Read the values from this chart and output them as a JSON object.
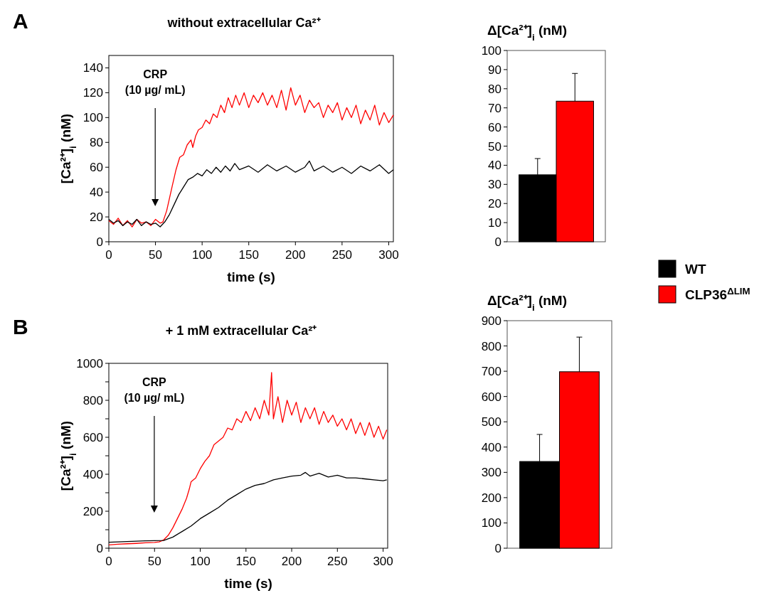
{
  "chart_data": [
    {
      "type": "line",
      "title": "without extracellular Ca²⁺",
      "xlabel": "time (s)",
      "ylabel": "[Ca²⁺]$_{i}$ (nM)",
      "xlim": [
        0,
        305
      ],
      "xticks": [
        0,
        50,
        100,
        150,
        200,
        250,
        300
      ],
      "ylim": [
        0,
        150
      ],
      "yticks": [
        0,
        20,
        40,
        60,
        80,
        100,
        120,
        140
      ],
      "annotations": [
        "A",
        "CRP\n(10 µg/ mL)"
      ],
      "series": [
        {
          "color": "#ff0000",
          "x": [
            0,
            5,
            10,
            15,
            20,
            25,
            30,
            35,
            40,
            45,
            50,
            55,
            58,
            62,
            65,
            68,
            72,
            76,
            80,
            84,
            88,
            90,
            93,
            96,
            100,
            104,
            108,
            112,
            116,
            120,
            124,
            128,
            132,
            136,
            140,
            145,
            150,
            155,
            160,
            165,
            170,
            175,
            180,
            185,
            190,
            195,
            200,
            205,
            210,
            215,
            220,
            225,
            230,
            235,
            240,
            245,
            250,
            255,
            260,
            265,
            270,
            275,
            280,
            285,
            290,
            295,
            300,
            305
          ],
          "values": [
            17,
            14,
            19,
            13,
            17,
            12,
            18,
            15,
            16,
            13,
            18,
            15,
            16,
            25,
            35,
            45,
            58,
            68,
            70,
            78,
            82,
            76,
            85,
            90,
            92,
            98,
            95,
            103,
            100,
            110,
            104,
            116,
            108,
            118,
            110,
            120,
            108,
            118,
            112,
            120,
            110,
            118,
            108,
            122,
            106,
            124,
            110,
            118,
            104,
            114,
            108,
            112,
            100,
            110,
            104,
            112,
            98,
            108,
            100,
            110,
            95,
            106,
            98,
            110,
            94,
            104,
            96,
            102
          ]
        },
        {
          "color": "#000000",
          "x": [
            0,
            5,
            10,
            15,
            20,
            25,
            30,
            35,
            40,
            45,
            50,
            55,
            60,
            65,
            70,
            75,
            80,
            85,
            90,
            95,
            100,
            105,
            110,
            115,
            120,
            125,
            130,
            135,
            140,
            150,
            160,
            170,
            180,
            190,
            200,
            210,
            215,
            220,
            230,
            240,
            250,
            260,
            270,
            280,
            290,
            300,
            305
          ],
          "values": [
            18,
            15,
            17,
            13,
            16,
            14,
            18,
            13,
            16,
            14,
            15,
            12,
            16,
            22,
            30,
            38,
            44,
            50,
            52,
            55,
            53,
            58,
            55,
            60,
            56,
            61,
            57,
            63,
            58,
            61,
            56,
            62,
            57,
            61,
            56,
            60,
            65,
            57,
            61,
            56,
            60,
            55,
            61,
            57,
            62,
            55,
            58
          ]
        }
      ]
    },
    {
      "type": "bar",
      "title": "Δ[Ca²⁺]$_{i}$ (nM)",
      "categories": [
        null
      ],
      "ylim": [
        0,
        100
      ],
      "yticks": [
        0,
        10,
        20,
        30,
        40,
        50,
        60,
        70,
        80,
        90,
        100
      ],
      "legend": "right",
      "series": [
        {
          "name": "WT",
          "color": "#000000",
          "values": [
            35
          ],
          "errors": [
            [
              35,
              43.5
            ]
          ]
        },
        {
          "name": "CLP36$^{ΔLIM}$",
          "color": "#ff0000",
          "values": [
            73.5
          ],
          "errors": [
            [
              73.5,
              88
            ]
          ]
        }
      ]
    },
    {
      "type": "line",
      "title": "+ 1 mM extracellular Ca²⁺",
      "xlabel": "time (s)",
      "ylabel": "[Ca²⁺]$_{i}$ (nM)",
      "xlim": [
        0,
        305
      ],
      "xticks": [
        0,
        50,
        100,
        150,
        200,
        250,
        300
      ],
      "ylim": [
        0,
        1000
      ],
      "yticks": [
        0,
        {
          "value": 100,
          "label": null
        },
        200,
        {
          "value": 300,
          "label": null
        },
        400,
        {
          "value": 500,
          "label": null
        },
        600,
        {
          "value": 700,
          "label": null
        },
        800,
        {
          "value": 900,
          "label": null
        },
        1000
      ],
      "annotations": [
        "B",
        "CRP\n(10 µg/ mL)"
      ],
      "series": [
        {
          "color": "#ff0000",
          "x": [
            0,
            10,
            20,
            30,
            40,
            50,
            55,
            60,
            65,
            70,
            75,
            80,
            85,
            88,
            90,
            95,
            100,
            105,
            110,
            115,
            120,
            125,
            130,
            135,
            140,
            145,
            150,
            155,
            160,
            165,
            170,
            175,
            178,
            180,
            185,
            190,
            195,
            200,
            205,
            210,
            215,
            220,
            225,
            230,
            235,
            240,
            245,
            250,
            255,
            260,
            265,
            270,
            275,
            280,
            285,
            290,
            295,
            300,
            304
          ],
          "values": [
            18,
            22,
            24,
            26,
            29,
            31,
            34,
            45,
            70,
            110,
            160,
            210,
            270,
            320,
            360,
            380,
            430,
            470,
            500,
            560,
            580,
            600,
            650,
            640,
            700,
            680,
            740,
            690,
            760,
            700,
            800,
            720,
            950,
            700,
            820,
            680,
            800,
            720,
            790,
            680,
            760,
            700,
            760,
            670,
            740,
            680,
            720,
            660,
            700,
            640,
            700,
            620,
            680,
            610,
            680,
            600,
            660,
            590,
            640
          ]
        },
        {
          "color": "#000000",
          "x": [
            0,
            10,
            20,
            30,
            40,
            50,
            60,
            70,
            80,
            90,
            100,
            110,
            120,
            130,
            140,
            150,
            160,
            170,
            180,
            190,
            200,
            210,
            215,
            220,
            230,
            240,
            250,
            260,
            270,
            280,
            290,
            300,
            304
          ],
          "values": [
            32,
            34,
            36,
            38,
            40,
            41,
            42,
            60,
            90,
            120,
            160,
            190,
            220,
            260,
            290,
            320,
            340,
            350,
            370,
            380,
            390,
            395,
            410,
            390,
            405,
            385,
            395,
            380,
            380,
            375,
            370,
            365,
            370
          ]
        }
      ]
    },
    {
      "type": "bar",
      "title": "Δ[Ca²⁺]$_{i}$ (nM)",
      "categories": [
        null
      ],
      "ylim": [
        0,
        900
      ],
      "yticks": [
        0,
        100,
        200,
        300,
        400,
        500,
        600,
        700,
        800,
        900
      ],
      "series": [
        {
          "color": "#000000",
          "values": [
            343
          ],
          "errors": [
            [
              343,
              450
            ]
          ]
        },
        {
          "color": "#ff0000",
          "values": [
            698
          ],
          "errors": [
            [
              698,
              835
            ]
          ]
        }
      ]
    }
  ]
}
